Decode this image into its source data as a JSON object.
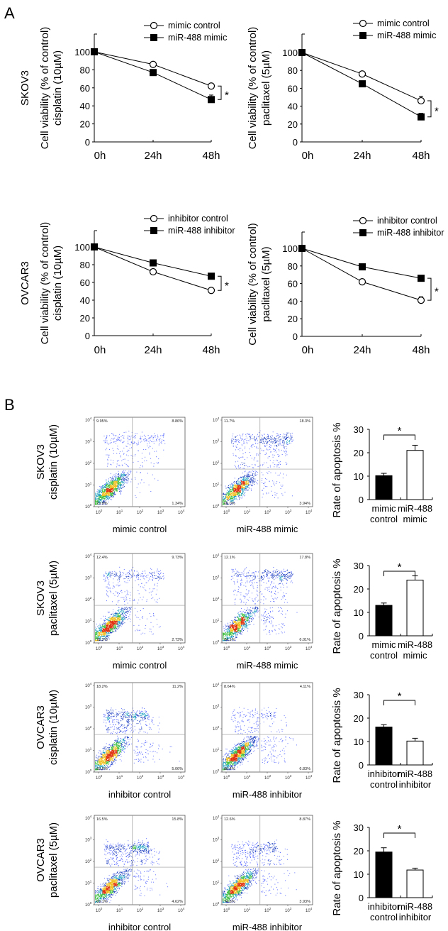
{
  "panel_labels": {
    "a": "A",
    "b": "B"
  },
  "chart_data": [
    {
      "type": "line",
      "row_label": "SKOV3",
      "ylabel": [
        "Cell viability (% of control)",
        "cisplatin (10µM)"
      ],
      "categories": [
        "0h",
        "24h",
        "48h"
      ],
      "ylim": [
        0,
        100
      ],
      "yticks": [
        "0",
        "20",
        "40",
        "60",
        "80",
        "100"
      ],
      "series": [
        {
          "name": "mimic control",
          "marker": "open-circle",
          "values": [
            100,
            86,
            62
          ],
          "errors": [
            0,
            1,
            3
          ]
        },
        {
          "name": "miR-488 mimic",
          "marker": "filled-square",
          "values": [
            100,
            77,
            47
          ],
          "errors": [
            0,
            1,
            5
          ]
        }
      ],
      "annotation": "*"
    },
    {
      "type": "line",
      "row_label": "",
      "ylabel": [
        "Cell viability (% of control)",
        "paclitaxel (5µM)"
      ],
      "categories": [
        "0h",
        "24h",
        "48h"
      ],
      "ylim": [
        0,
        100
      ],
      "yticks": [
        "0",
        "20",
        "40",
        "60",
        "80",
        "100"
      ],
      "series": [
        {
          "name": "mimic control",
          "marker": "open-circle",
          "values": [
            100,
            76,
            46
          ],
          "errors": [
            0,
            1,
            5
          ]
        },
        {
          "name": "miR-488 mimic",
          "marker": "filled-square",
          "values": [
            100,
            65,
            28
          ],
          "errors": [
            0,
            1,
            4
          ]
        }
      ],
      "annotation": "*"
    },
    {
      "type": "line",
      "row_label": "OVCAR3",
      "ylabel": [
        "Cell viability (% of control)",
        "cisplatin (10µM)"
      ],
      "categories": [
        "0h",
        "24h",
        "48h"
      ],
      "ylim": [
        0,
        100
      ],
      "yticks": [
        "0",
        "20",
        "40",
        "60",
        "80",
        "100"
      ],
      "series": [
        {
          "name": "inhibitor control",
          "marker": "open-circle",
          "values": [
            100,
            72,
            51
          ],
          "errors": [
            0,
            1,
            1
          ]
        },
        {
          "name": "miR-488 inhibitor",
          "marker": "filled-square",
          "values": [
            100,
            82,
            67
          ],
          "errors": [
            0,
            1,
            1
          ]
        }
      ],
      "annotation": "*"
    },
    {
      "type": "line",
      "row_label": "",
      "ylabel": [
        "Cell viability (% of control)",
        "paclitaxel (5µM)"
      ],
      "categories": [
        "0h",
        "24h",
        "48h"
      ],
      "ylim": [
        0,
        100
      ],
      "yticks": [
        "0",
        "20",
        "40",
        "60",
        "80",
        "100"
      ],
      "series": [
        {
          "name": "inhibitor control",
          "marker": "open-circle",
          "values": [
            100,
            62,
            41
          ],
          "errors": [
            0,
            1,
            4
          ]
        },
        {
          "name": "miR-488 inhibitor",
          "marker": "filled-square",
          "values": [
            100,
            79,
            66
          ],
          "errors": [
            0,
            1,
            1
          ]
        }
      ],
      "annotation": "*"
    },
    {
      "type": "bar",
      "ylabel": "Rate of apoptosis %",
      "categories": [
        [
          "mimic",
          "control"
        ],
        [
          "miR-488",
          "mimic"
        ]
      ],
      "values": [
        10.2,
        21.0
      ],
      "errors": [
        1.0,
        2.2
      ],
      "colors": [
        "#000000",
        "#ffffff"
      ],
      "ylim": [
        0,
        30
      ],
      "yticks": [
        "0",
        "10",
        "20",
        "30"
      ],
      "annotation": "*"
    },
    {
      "type": "bar",
      "ylabel": "Rate of apoptosis %",
      "categories": [
        [
          "mimic",
          "control"
        ],
        [
          "miR-488",
          "mimic"
        ]
      ],
      "values": [
        13.0,
        23.8
      ],
      "errors": [
        1.0,
        1.8
      ],
      "colors": [
        "#000000",
        "#ffffff"
      ],
      "ylim": [
        0,
        30
      ],
      "yticks": [
        "0",
        "10",
        "20",
        "30"
      ],
      "annotation": "*"
    },
    {
      "type": "bar",
      "ylabel": "Rate of apoptosis %",
      "categories": [
        [
          "inhibitor",
          "control"
        ],
        [
          "miR-488",
          "inhibitor"
        ]
      ],
      "values": [
        16.2,
        10.2
      ],
      "errors": [
        1.0,
        1.2
      ],
      "colors": [
        "#000000",
        "#ffffff"
      ],
      "ylim": [
        0,
        30
      ],
      "yticks": [
        "0",
        "10",
        "20",
        "30"
      ],
      "annotation": "*"
    },
    {
      "type": "bar",
      "ylabel": "Rate of apoptosis %",
      "categories": [
        [
          "inhibitor",
          "control"
        ],
        [
          "miR-488",
          "inhibitor"
        ]
      ],
      "values": [
        19.5,
        11.8
      ],
      "errors": [
        1.8,
        0.8
      ],
      "colors": [
        "#000000",
        "#ffffff"
      ],
      "ylim": [
        0,
        30
      ],
      "yticks": [
        "0",
        "10",
        "20",
        "30"
      ],
      "annotation": "*"
    }
  ],
  "flow_cytometry": {
    "tick_base": "10",
    "tick_exponents": [
      "0",
      "1",
      "2",
      "3",
      "4"
    ],
    "rows": [
      {
        "row_label": [
          "SKOV3",
          "cisplatin (10µM)"
        ],
        "plots": [
          {
            "label": "mimic control",
            "ul": "9.95%",
            "ur": "8.86%",
            "ll": "79.8%",
            "lr": "1.34%"
          },
          {
            "label": "miR-488 mimic",
            "ul": "11.7%",
            "ur": "18.3%",
            "ll": "66.0%",
            "lr": "3.94%"
          }
        ]
      },
      {
        "row_label": [
          "SKOV3",
          "paclitaxel (5µM)"
        ],
        "plots": [
          {
            "label": "mimic control",
            "ul": "12.4%",
            "ur": "9.73%",
            "ll": "75.2%",
            "lr": "2.73%"
          },
          {
            "label": "miR-488 mimic",
            "ul": "12.1%",
            "ur": "17.8%",
            "ll": "64.1%",
            "lr": "6.01%"
          }
        ]
      },
      {
        "row_label": [
          "OVCAR3",
          "cisplatin (10µM)"
        ],
        "plots": [
          {
            "label": "inhibitor control",
            "ul": "18.2%",
            "ur": "11.2%",
            "ll": "65.6%",
            "lr": "5.06%"
          },
          {
            "label": "miR-488 inhibitor",
            "ul": "8.64%",
            "ur": "4.11%",
            "ll": "80.4%",
            "lr": "6.83%"
          }
        ]
      },
      {
        "row_label": [
          "OVCAR3",
          "paclitaxel (5µM)"
        ],
        "plots": [
          {
            "label": "inhibitor control",
            "ul": "16.5%",
            "ur": "15.8%",
            "ll": "63.1%",
            "lr": "4.62%"
          },
          {
            "label": "miR-488 inhibitor",
            "ul": "12.6%",
            "ur": "8.87%",
            "ll": "74.6%",
            "lr": "3.93%"
          }
        ]
      }
    ]
  }
}
